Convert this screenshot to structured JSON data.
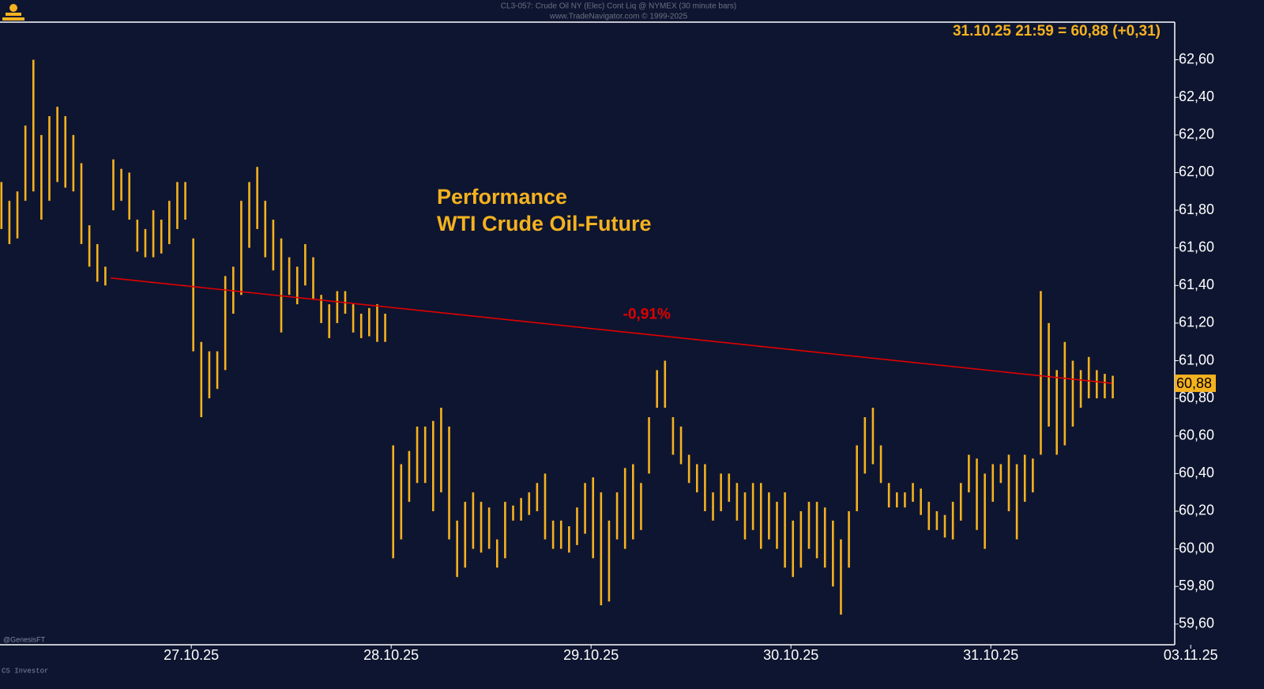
{
  "chart_data": {
    "type": "range",
    "title": "CL3-057:  Crude Oil NY (Elec) Cont Liq @ NYMEX  (30 minute bars)",
    "subtitle": "www.TradeNavigator.com © 1999-2025",
    "header_text": "31.10.25 21:59 = 60,88 (+0,31)",
    "annotation": [
      "Performance",
      "WTI Crude Oil-Future"
    ],
    "footer_left": [
      "@GenesisFT",
      "CS Investor"
    ],
    "color": "#f5b21f",
    "x": [
      -0.95,
      -0.91,
      -0.87,
      -0.83,
      -0.79,
      -0.75,
      -0.71,
      -0.67,
      -0.63,
      -0.59,
      -0.55,
      -0.51,
      -0.47,
      -0.43,
      -0.39,
      -0.35,
      -0.31,
      -0.27,
      -0.23,
      -0.19,
      -0.15,
      -0.11,
      -0.07,
      -0.03,
      0.01,
      0.05,
      0.09,
      0.13,
      0.17,
      0.21,
      0.25,
      0.29,
      0.33,
      0.37,
      0.41,
      0.45,
      0.49,
      0.53,
      0.57,
      0.61,
      0.65,
      0.69,
      0.73,
      0.77,
      0.81,
      0.85,
      0.89,
      0.93,
      0.97,
      1.01,
      1.05,
      1.09,
      1.13,
      1.17,
      1.21,
      1.25,
      1.29,
      1.33,
      1.37,
      1.41,
      1.45,
      1.49,
      1.53,
      1.57,
      1.61,
      1.65,
      1.69,
      1.73,
      1.77,
      1.81,
      1.85,
      1.89,
      1.93,
      1.97,
      2.01,
      2.05,
      2.09,
      2.13,
      2.17,
      2.21,
      2.25,
      2.29,
      2.33,
      2.37,
      2.41,
      2.45,
      2.49,
      2.53,
      2.57,
      2.61,
      2.65,
      2.69,
      2.73,
      2.77,
      2.81,
      2.85,
      2.89,
      2.93,
      2.97,
      3.01,
      3.05,
      3.09,
      3.13,
      3.17,
      3.21,
      3.25,
      3.29,
      3.33,
      3.37,
      3.41,
      3.45,
      3.49,
      3.53,
      3.57,
      3.61,
      3.65,
      3.69,
      3.73,
      3.77,
      3.81,
      3.85,
      3.89,
      3.93,
      3.97,
      4.01,
      4.05,
      4.09,
      4.13,
      4.17,
      4.21,
      4.25,
      4.29,
      4.33,
      4.37,
      4.41,
      4.45,
      4.49,
      4.53,
      4.57,
      4.61
    ],
    "high": [
      61.95,
      61.85,
      61.9,
      62.25,
      62.6,
      62.2,
      62.3,
      62.35,
      62.3,
      62.2,
      62.05,
      61.72,
      61.62,
      61.5,
      62.07,
      62.02,
      62.0,
      61.75,
      61.7,
      61.8,
      61.75,
      61.85,
      61.95,
      61.95,
      61.65,
      61.1,
      61.05,
      61.05,
      61.45,
      61.5,
      61.85,
      61.95,
      62.03,
      61.85,
      61.75,
      61.65,
      61.55,
      61.5,
      61.62,
      61.55,
      61.35,
      61.3,
      61.37,
      61.37,
      61.3,
      61.25,
      61.28,
      61.3,
      61.25,
      60.55,
      60.45,
      60.52,
      60.65,
      60.65,
      60.68,
      60.75,
      60.65,
      60.15,
      60.25,
      60.3,
      60.25,
      60.22,
      60.05,
      60.25,
      60.23,
      60.27,
      60.3,
      60.35,
      60.4,
      60.15,
      60.15,
      60.12,
      60.22,
      60.35,
      60.38,
      60.3,
      60.15,
      60.3,
      60.43,
      60.45,
      60.35,
      60.7,
      60.95,
      61.0,
      60.7,
      60.65,
      60.5,
      60.45,
      60.45,
      60.3,
      60.4,
      60.4,
      60.35,
      60.3,
      60.35,
      60.35,
      60.3,
      60.25,
      60.3,
      60.15,
      60.2,
      60.25,
      60.25,
      60.22,
      60.15,
      60.05,
      60.2,
      60.55,
      60.7,
      60.75,
      60.55,
      60.35,
      60.3,
      60.3,
      60.35,
      60.32,
      60.25,
      60.2,
      60.18,
      60.25,
      60.35,
      60.5,
      60.48,
      60.4,
      60.45,
      60.45,
      60.5,
      60.45,
      60.5,
      60.48,
      61.37,
      61.2,
      60.95,
      61.1,
      61.0,
      60.95,
      61.02,
      60.95,
      60.93,
      60.92
    ],
    "low": [
      61.7,
      61.62,
      61.65,
      61.85,
      61.9,
      61.75,
      61.85,
      61.95,
      61.92,
      61.9,
      61.62,
      61.5,
      61.42,
      61.4,
      61.8,
      61.85,
      61.75,
      61.58,
      61.55,
      61.55,
      61.57,
      61.62,
      61.7,
      61.75,
      61.05,
      60.7,
      60.8,
      60.85,
      60.95,
      61.25,
      61.35,
      61.6,
      61.7,
      61.55,
      61.48,
      61.15,
      61.35,
      61.3,
      61.4,
      61.33,
      61.2,
      61.12,
      61.2,
      61.25,
      61.15,
      61.12,
      61.13,
      61.1,
      61.1,
      59.95,
      60.05,
      60.25,
      60.35,
      60.35,
      60.2,
      60.3,
      60.05,
      59.85,
      59.9,
      60.0,
      59.98,
      60.0,
      59.9,
      59.95,
      60.15,
      60.15,
      60.18,
      60.2,
      60.05,
      60.0,
      60.0,
      59.98,
      60.02,
      60.08,
      59.95,
      59.7,
      59.72,
      60.05,
      60.0,
      60.05,
      60.1,
      60.4,
      60.75,
      60.75,
      60.5,
      60.45,
      60.35,
      60.3,
      60.2,
      60.15,
      60.2,
      60.25,
      60.15,
      60.05,
      60.1,
      60.0,
      60.05,
      60.0,
      59.9,
      59.85,
      59.9,
      60.0,
      59.95,
      59.9,
      59.8,
      59.65,
      59.9,
      60.2,
      60.4,
      60.45,
      60.35,
      60.22,
      60.22,
      60.22,
      60.25,
      60.18,
      60.1,
      60.1,
      60.06,
      60.05,
      60.15,
      60.3,
      60.1,
      60.0,
      60.25,
      60.35,
      60.2,
      60.05,
      60.25,
      60.3,
      60.5,
      60.65,
      60.5,
      60.55,
      60.65,
      60.75,
      60.8,
      60.8,
      60.8,
      60.8
    ],
    "trend_line": {
      "x": [
        -0.403,
        4.605
      ],
      "values": [
        61.44,
        60.88
      ],
      "label": "-0,91%",
      "color": "#e00000"
    },
    "last_price": {
      "value": 60.88,
      "label": "60,88"
    },
    "xlim": [
      -0.957,
      4.92
    ],
    "xticks": [
      {
        "value": 0,
        "label": "27.10.25"
      },
      {
        "value": 1,
        "label": "28.10.25"
      },
      {
        "value": 2,
        "label": "29.10.25"
      },
      {
        "value": 3,
        "label": "30.10.25"
      },
      {
        "value": 4,
        "label": "31.10.25"
      },
      {
        "value": 5,
        "label": "03.11.25"
      }
    ],
    "ylim": [
      59.49,
      62.8
    ],
    "yticks": [
      {
        "value": 59.6,
        "label": "59,60"
      },
      {
        "value": 59.8,
        "label": "59,80"
      },
      {
        "value": 60.0,
        "label": "60,00"
      },
      {
        "value": 60.2,
        "label": "60,20"
      },
      {
        "value": 60.4,
        "label": "60,40"
      },
      {
        "value": 60.6,
        "label": "60,60"
      },
      {
        "value": 60.8,
        "label": "60,80"
      },
      {
        "value": 61.0,
        "label": "61,00"
      },
      {
        "value": 61.2,
        "label": "61,20"
      },
      {
        "value": 61.4,
        "label": "61,40"
      },
      {
        "value": 61.6,
        "label": "61,60"
      },
      {
        "value": 61.8,
        "label": "61,80"
      },
      {
        "value": 62.0,
        "label": "62,00"
      },
      {
        "value": 62.2,
        "label": "62,20"
      },
      {
        "value": 62.4,
        "label": "62,40"
      },
      {
        "value": 62.6,
        "label": "62,60"
      }
    ],
    "grid": false
  }
}
